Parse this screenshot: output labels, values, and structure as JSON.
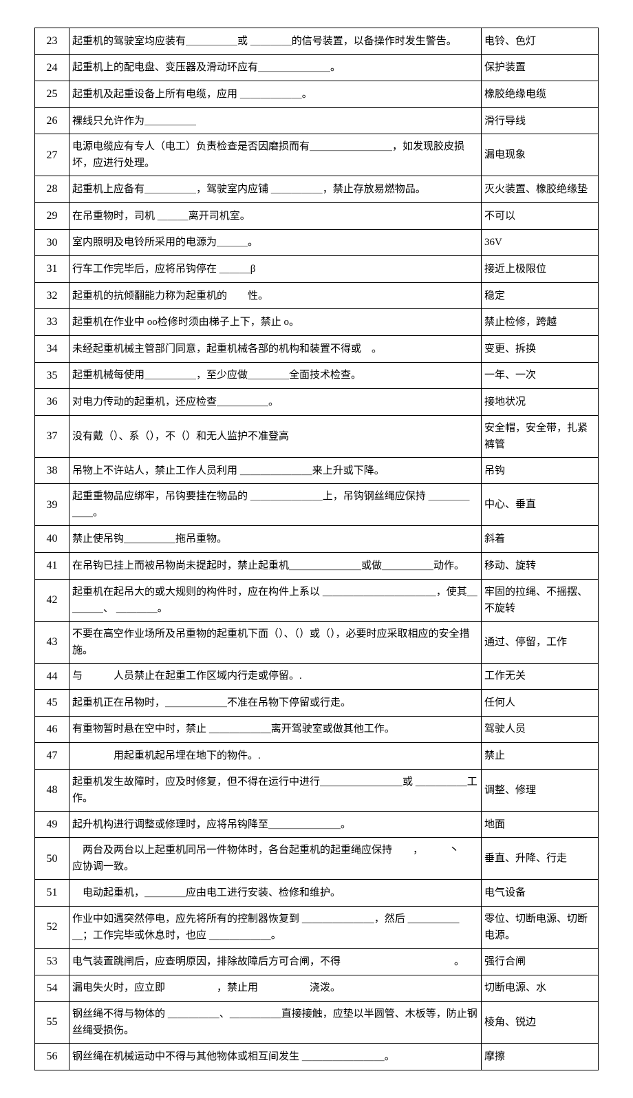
{
  "table": {
    "columns": {
      "num_width": 50,
      "answer_width": 170
    },
    "border_color": "#000000",
    "background_color": "#ffffff",
    "text_color": "#000000",
    "font_size": 15,
    "num_font_size": 16,
    "rows": [
      {
        "num": "23",
        "question": "起重机的驾驶室均应装有＿＿＿＿＿或 ＿＿＿＿的信号装置，以备操作时发生警告。",
        "answer": "电铃、色灯"
      },
      {
        "num": "24",
        "question": "起重机上的配电盘、变压器及滑动环应有＿＿＿＿＿＿＿。",
        "answer": "保护装置"
      },
      {
        "num": "25",
        "question": "起重机及起重设备上所有电缆，应用 ＿＿＿＿＿＿。",
        "answer": "橡胶绝缘电缆"
      },
      {
        "num": "26",
        "question": "裸线只允许作为＿＿＿＿＿",
        "answer": "滑行导线"
      },
      {
        "num": "27",
        "question": "电源电缆应有专人（电工）负责检查是否因磨损而有＿＿＿＿＿＿＿＿，如发现胶皮损坏，应进行处理。",
        "answer": "漏电现象"
      },
      {
        "num": "28",
        "question": "起重机上应备有＿＿＿＿＿，驾驶室内应铺 ＿＿＿＿＿，禁止存放易燃物品。",
        "answer": "灭火装置、橡胶绝缘垫"
      },
      {
        "num": "29",
        "question": "在吊重物时，司机 ＿＿＿离开司机室。",
        "answer": "不可以"
      },
      {
        "num": "30",
        "question": "室内照明及电铃所采用的电源为＿＿＿。",
        "answer": "36V"
      },
      {
        "num": "31",
        "question": "行车工作完毕后，应将吊钩停在 ＿＿＿β",
        "answer": "接近上极限位"
      },
      {
        "num": "32",
        "question": "起重机的抗倾翻能力称为起重机的　　性。",
        "answer": "稳定"
      },
      {
        "num": "33",
        "question": "起重机在作业中 ᴏᴏ检修时须由梯子上下，禁止 ᴏ。",
        "answer": "禁止检修，跨越"
      },
      {
        "num": "34",
        "question": "未经起重机械主管部门同意，起重机械各部的机构和装置不得或　。",
        "answer": "变更、拆换"
      },
      {
        "num": "35",
        "question": "起重机械每使用＿＿＿＿＿，至少应做＿＿＿＿全面技术检查。",
        "answer": "一年、一次"
      },
      {
        "num": "36",
        "question": "对电力传动的起重机，还应检查＿＿＿＿＿。",
        "answer": "接地状况"
      },
      {
        "num": "37",
        "question": "没有戴（）、系（），不（）和无人监护不准登高",
        "answer": "安全帽，安全带，扎紧裤管"
      },
      {
        "num": "38",
        "question": "吊物上不许站人，禁止工作人员利用 ＿＿＿＿＿＿＿来上升或下降。",
        "answer": "吊钩"
      },
      {
        "num": "39",
        "question": "起重重物品应绑牢，吊钩要挂在物品的 ＿＿＿＿＿＿＿上，吊钩钢丝绳应保持 ＿＿＿＿＿＿。",
        "answer": "中心、垂直"
      },
      {
        "num": "40",
        "question": "禁止使吊钩＿＿＿＿＿拖吊重物。",
        "answer": "斜着"
      },
      {
        "num": "41",
        "question": "在吊钩已挂上而被吊物尚未提起时，禁止起重机＿＿＿＿＿＿＿或做＿＿＿＿＿动作。",
        "answer": "移动、旋转"
      },
      {
        "num": "42",
        "question": "起重机在起吊大的或大规则的构件时，应在构件上系以 ＿＿＿＿＿＿＿＿＿＿＿，使其＿＿＿＿、 ＿＿＿＿。",
        "answer": "牢固的拉绳、不摇摆、不旋转"
      },
      {
        "num": "43",
        "question": "不要在高空作业场所及吊重物的起重机下面（）、（）或（），必要时应采取相应的安全措施。",
        "answer": "通过、停留，工作"
      },
      {
        "num": "44",
        "question": "与　　　人员禁止在起重工作区域内行走或停留。. 　",
        "answer": "工作无关"
      },
      {
        "num": "45",
        "question": "起重机正在吊物时，＿＿＿＿＿＿不准在吊物下停留或行走。",
        "answer": "任何人"
      },
      {
        "num": "46",
        "question": "有重物暂时悬在空中时，禁止 ＿＿＿＿＿＿离开驾驶室或做其他工作。",
        "answer": "驾驶人员"
      },
      {
        "num": "47",
        "question": "　　　　用起重机起吊埋在地下的物件。.",
        "answer": "禁止"
      },
      {
        "num": "48",
        "question": "起重机发生故障时，应及时修复，但不得在运行中进行＿＿＿＿＿＿＿＿或 ＿＿＿＿＿工作。",
        "answer": "调整、修理"
      },
      {
        "num": "49",
        "question": "起升机构进行调整或修理时，应将吊钩降至＿＿＿＿＿＿＿。",
        "answer": "地面"
      },
      {
        "num": "50",
        "question": "　两台及两台以上起重机同吊一件物体时，各台起重机的起重绳应保持　　，　　　丶　　　　　应协调一致。",
        "answer": "垂直、升降、行走"
      },
      {
        "num": "51",
        "question": "　电动起重机，＿＿＿＿应由电工进行安装、检修和维护。",
        "answer": "电气设备"
      },
      {
        "num": "52",
        "question": "作业中如遇突然停电，应先将所有的控制器恢复到 ＿＿＿＿＿＿＿，然后 ＿＿＿＿＿＿；工作完毕或休息时，也应 ＿＿＿＿＿＿。",
        "answer": "零位、切断电源、切断电源。"
      },
      {
        "num": "53",
        "question": "电气装置跳闸后，应查明原因，排除故障后方可合闸，不得　　　　　　　　　　　。",
        "answer": "强行合闸"
      },
      {
        "num": "54",
        "question": "漏电失火时，应立即　　　　　，禁止用　　　　　浇泼。",
        "answer": "切断电源、水"
      },
      {
        "num": "55",
        "question": "钢丝绳不得与物体的 ＿＿＿＿＿、＿＿＿＿＿直接接触，应垫以半圆管、木板等，防止钢丝绳受损伤。",
        "answer": "棱角、锐边"
      },
      {
        "num": "56",
        "question": "钢丝绳在机械运动中不得与其他物体或相互间发生 ＿＿＿＿＿＿＿＿。",
        "answer": "摩擦"
      }
    ]
  }
}
